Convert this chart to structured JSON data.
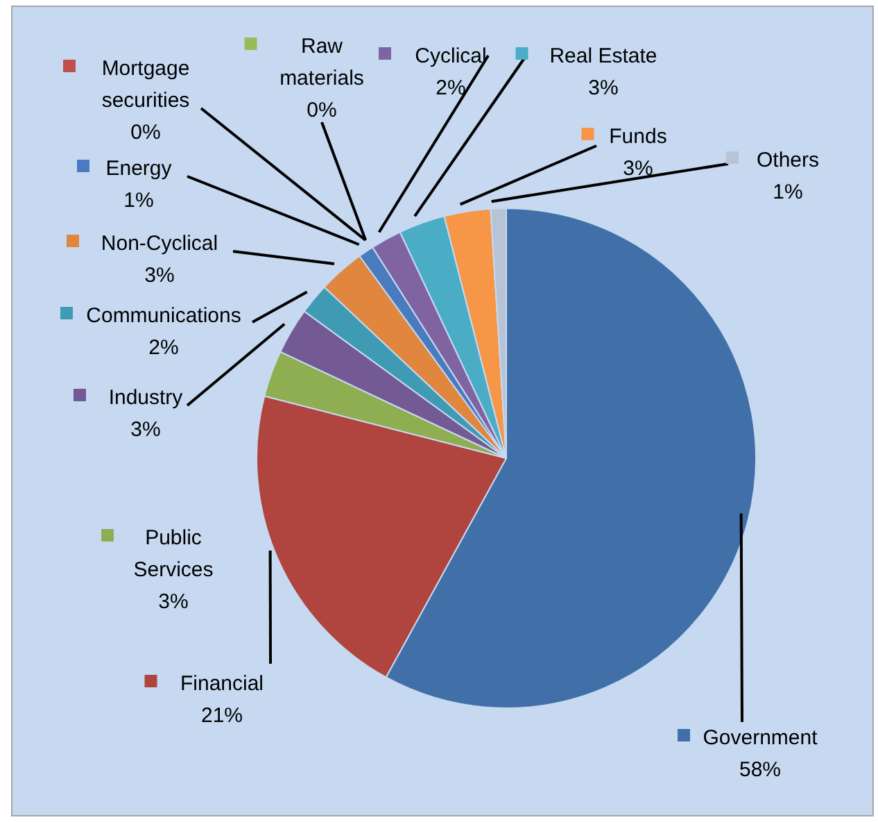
{
  "chart_data": {
    "type": "pie",
    "categories": [
      "Government",
      "Financial",
      "Public Services",
      "Industry",
      "Communications",
      "Non-Cyclical",
      "Energy",
      "Mortgage securities",
      "Raw materials",
      "Cyclical",
      "Real Estate",
      "Funds",
      "Others"
    ],
    "values": [
      58,
      21,
      3,
      3,
      2,
      3,
      1,
      0,
      0,
      2,
      3,
      3,
      1
    ],
    "colors": [
      "#4170a8",
      "#b0443f",
      "#8fae52",
      "#735a94",
      "#3e9bb3",
      "#e0863e",
      "#4a7bbf",
      "#c0504d",
      "#9bbb59",
      "#8064a2",
      "#4bacc6",
      "#f79646",
      "#b9c3d6"
    ],
    "value_labels": [
      "58%",
      "21%",
      "3%",
      "3%",
      "2%",
      "3%",
      "1%",
      "0%",
      "0%",
      "2%",
      "3%",
      "3%",
      "1%"
    ],
    "legend": "left"
  }
}
